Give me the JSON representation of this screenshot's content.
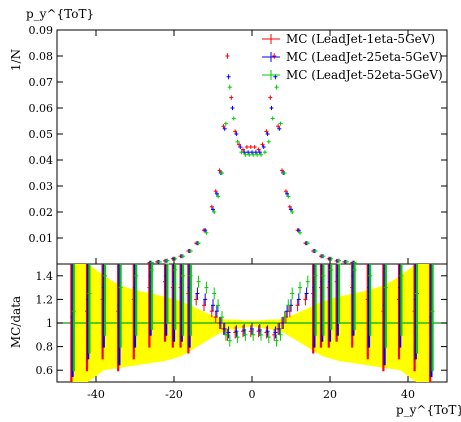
{
  "chart_data": [
    {
      "type": "scatter",
      "panel": "main",
      "ylabel": "1/N",
      "top_label": "p_y^{ToT}",
      "xlim": [
        -50,
        50
      ],
      "ylim": [
        0,
        0.09
      ],
      "yticks": [
        "0.01",
        "0.02",
        "0.03",
        "0.04",
        "0.05",
        "0.06",
        "0.07",
        "0.08",
        "0.09"
      ],
      "legend_position": "top-right",
      "x": [
        -26,
        -24,
        -22,
        -20,
        -18,
        -16,
        -14,
        -12,
        -10,
        -9,
        -8,
        -7,
        -6,
        -5,
        -4,
        -3,
        -2,
        -1,
        0,
        1,
        2,
        3,
        4,
        5,
        6,
        7,
        8,
        9,
        10,
        12,
        14,
        16,
        18,
        20,
        22,
        24,
        26
      ],
      "series": [
        {
          "name": "MC (LeadJet-1eta-5GeV)",
          "color": "#ff0000",
          "values": [
            0.0005,
            0.0008,
            0.0012,
            0.002,
            0.003,
            0.005,
            0.008,
            0.013,
            0.022,
            0.028,
            0.036,
            0.053,
            0.08,
            0.064,
            0.051,
            0.046,
            0.044,
            0.045,
            0.045,
            0.045,
            0.044,
            0.046,
            0.051,
            0.064,
            0.08,
            0.053,
            0.036,
            0.028,
            0.022,
            0.013,
            0.008,
            0.005,
            0.003,
            0.002,
            0.0012,
            0.0008,
            0.0005
          ]
        },
        {
          "name": "MC (LeadJet-25eta-5GeV)",
          "color": "#0000ff",
          "values": [
            0.0005,
            0.0008,
            0.0012,
            0.002,
            0.003,
            0.005,
            0.008,
            0.013,
            0.021,
            0.027,
            0.035,
            0.052,
            0.072,
            0.06,
            0.05,
            0.045,
            0.043,
            0.043,
            0.043,
            0.043,
            0.043,
            0.045,
            0.05,
            0.06,
            0.072,
            0.052,
            0.035,
            0.027,
            0.021,
            0.013,
            0.008,
            0.005,
            0.003,
            0.002,
            0.0012,
            0.0008,
            0.0005
          ]
        },
        {
          "name": "MC (LeadJet-52eta-5GeV)",
          "color": "#00cc00",
          "values": [
            0.0005,
            0.0008,
            0.0013,
            0.002,
            0.003,
            0.005,
            0.008,
            0.012,
            0.02,
            0.026,
            0.035,
            0.054,
            0.068,
            0.056,
            0.047,
            0.043,
            0.042,
            0.042,
            0.042,
            0.042,
            0.042,
            0.043,
            0.047,
            0.056,
            0.068,
            0.054,
            0.035,
            0.026,
            0.02,
            0.012,
            0.008,
            0.005,
            0.003,
            0.002,
            0.0013,
            0.0008,
            0.0005
          ]
        }
      ]
    },
    {
      "type": "scatter",
      "panel": "ratio",
      "ylabel": "MC/data",
      "xlabel": "p_y^{ToT}",
      "xlim": [
        -50,
        50
      ],
      "ylim": [
        0.5,
        1.5
      ],
      "xticks": [
        "-40",
        "-20",
        "0",
        "20",
        "40"
      ],
      "yticks": [
        "0.6",
        "0.8",
        "1",
        "1.2",
        "1.4"
      ],
      "reference_line": 1,
      "x": [
        -46,
        -42,
        -38,
        -34,
        -30,
        -26,
        -22,
        -20,
        -18,
        -16,
        -14,
        -12,
        -10,
        -9,
        -8,
        -7,
        -6,
        -4,
        -2,
        0,
        2,
        4,
        6,
        7,
        8,
        9,
        10,
        12,
        14,
        16,
        18,
        20,
        22,
        26,
        30,
        34,
        38,
        42,
        46
      ],
      "band_low": [
        0.5,
        0.5,
        0.6,
        0.62,
        0.64,
        0.66,
        0.68,
        0.7,
        0.72,
        0.76,
        0.8,
        0.84,
        0.88,
        0.9,
        0.92,
        0.93,
        0.94,
        0.95,
        0.96,
        0.97,
        0.96,
        0.95,
        0.94,
        0.93,
        0.92,
        0.9,
        0.88,
        0.84,
        0.8,
        0.76,
        0.72,
        0.7,
        0.68,
        0.66,
        0.64,
        0.62,
        0.6,
        0.5,
        0.5
      ],
      "band_high": [
        1.5,
        1.5,
        1.4,
        1.32,
        1.28,
        1.25,
        1.22,
        1.2,
        1.18,
        1.15,
        1.12,
        1.09,
        1.06,
        1.05,
        1.04,
        1.03,
        1.03,
        1.03,
        1.02,
        1.02,
        1.02,
        1.03,
        1.03,
        1.03,
        1.04,
        1.05,
        1.06,
        1.09,
        1.12,
        1.15,
        1.18,
        1.2,
        1.22,
        1.25,
        1.28,
        1.32,
        1.4,
        1.5,
        1.5
      ],
      "series": [
        {
          "name": "MC (LeadJet-1eta-5GeV)",
          "color": "#ff0000",
          "values": [
            1.0,
            1.1,
            1.2,
            1.1,
            1.2,
            1.3,
            1.35,
            1.3,
            1.3,
            1.25,
            1.2,
            1.15,
            1.1,
            1.05,
            1.0,
            0.95,
            0.9,
            0.92,
            0.93,
            0.93,
            0.93,
            0.92,
            0.9,
            0.95,
            1.0,
            1.05,
            1.1,
            1.15,
            1.2,
            1.25,
            1.3,
            1.3,
            1.35,
            1.3,
            1.2,
            1.1,
            1.2,
            1.1,
            1.0
          ]
        },
        {
          "name": "MC (LeadJet-25eta-5GeV)",
          "color": "#0000ff",
          "values": [
            1.05,
            1.2,
            1.3,
            1.15,
            1.3,
            1.4,
            1.4,
            1.35,
            1.35,
            1.3,
            1.25,
            1.2,
            1.15,
            1.1,
            1.0,
            0.95,
            0.92,
            0.93,
            0.94,
            0.95,
            0.94,
            0.93,
            0.92,
            0.95,
            1.0,
            1.1,
            1.15,
            1.2,
            1.25,
            1.3,
            1.35,
            1.35,
            1.4,
            1.4,
            1.3,
            1.15,
            1.3,
            1.2,
            1.05
          ]
        },
        {
          "name": "MC (LeadJet-52eta-5GeV)",
          "color": "#00cc00",
          "values": [
            1.1,
            1.25,
            1.4,
            1.3,
            1.4,
            1.45,
            1.5,
            1.45,
            1.4,
            1.4,
            1.35,
            1.3,
            1.25,
            1.15,
            1.05,
            0.9,
            0.85,
            0.88,
            0.9,
            0.9,
            0.9,
            0.88,
            0.85,
            0.9,
            1.05,
            1.15,
            1.25,
            1.3,
            1.35,
            1.4,
            1.4,
            1.45,
            1.5,
            1.45,
            1.4,
            1.3,
            1.4,
            1.25,
            1.1
          ]
        }
      ]
    }
  ]
}
